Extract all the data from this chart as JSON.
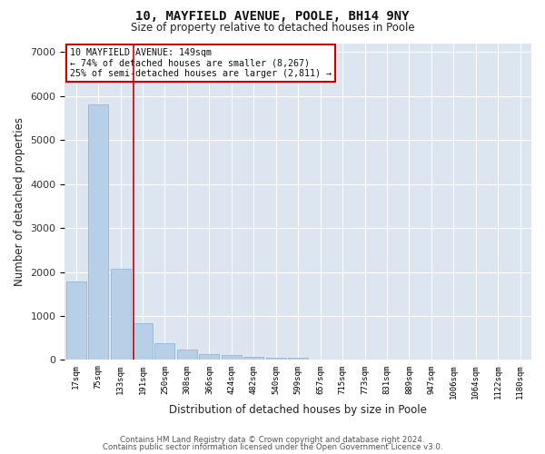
{
  "title1": "10, MAYFIELD AVENUE, POOLE, BH14 9NY",
  "title2": "Size of property relative to detached houses in Poole",
  "xlabel": "Distribution of detached houses by size in Poole",
  "ylabel": "Number of detached properties",
  "bin_labels": [
    "17sqm",
    "75sqm",
    "133sqm",
    "191sqm",
    "250sqm",
    "308sqm",
    "366sqm",
    "424sqm",
    "482sqm",
    "540sqm",
    "599sqm",
    "657sqm",
    "715sqm",
    "773sqm",
    "831sqm",
    "889sqm",
    "947sqm",
    "1006sqm",
    "1064sqm",
    "1122sqm",
    "1180sqm"
  ],
  "bar_values": [
    1780,
    5800,
    2080,
    830,
    380,
    230,
    130,
    110,
    80,
    60,
    55,
    0,
    0,
    0,
    0,
    0,
    0,
    0,
    0,
    0,
    0
  ],
  "bar_color": "#b8cfe8",
  "bar_edge_color": "#8aafd4",
  "property_line_x": 2.58,
  "property_line_color": "#cc0000",
  "annotation_title": "10 MAYFIELD AVENUE: 149sqm",
  "annotation_line1": "← 74% of detached houses are smaller (8,267)",
  "annotation_line2": "25% of semi-detached houses are larger (2,811) →",
  "annotation_box_color": "#ffffff",
  "annotation_box_edge": "#cc0000",
  "ylim": [
    0,
    7200
  ],
  "yticks": [
    0,
    1000,
    2000,
    3000,
    4000,
    5000,
    6000,
    7000
  ],
  "footer1": "Contains HM Land Registry data © Crown copyright and database right 2024.",
  "footer2": "Contains public sector information licensed under the Open Government Licence v3.0.",
  "fig_bg_color": "#ffffff",
  "plot_bg_color": "#dde6f0"
}
